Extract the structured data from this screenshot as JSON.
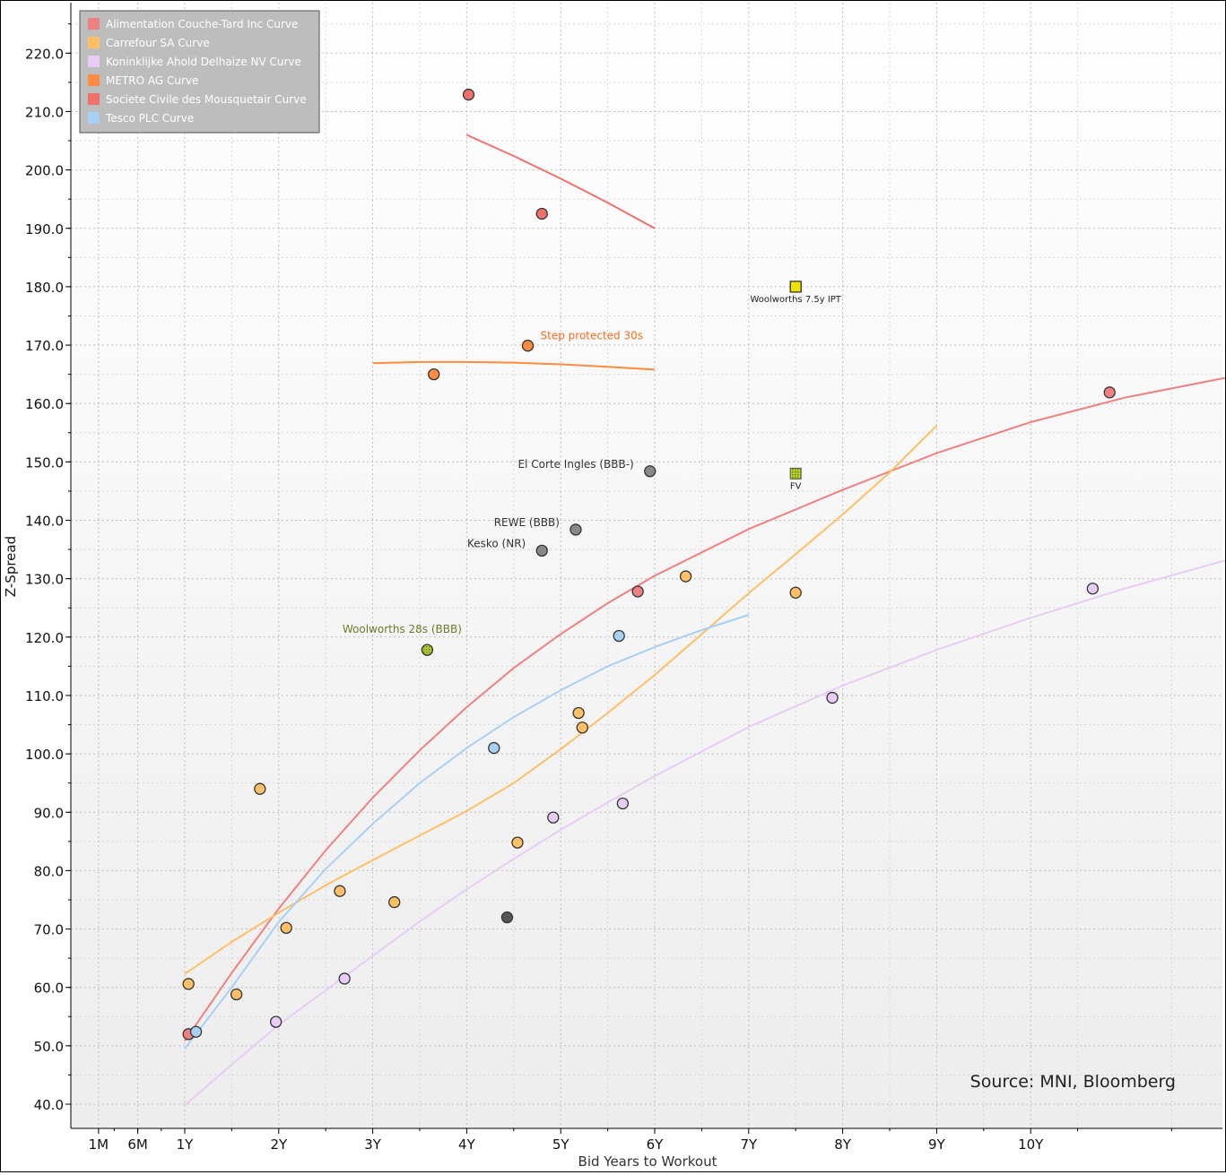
{
  "chart_data": {
    "type": "scatter",
    "xlabel": "Bid Years to Workout",
    "ylabel": "Z-Spread",
    "xlim": [
      0,
      12.2
    ],
    "ylim": [
      38,
      226
    ],
    "x_ticks": [
      {
        "label": "1M",
        "value": 0.083
      },
      {
        "label": "6M",
        "value": 0.5
      },
      {
        "label": "1Y",
        "value": 1
      },
      {
        "label": "2Y",
        "value": 2
      },
      {
        "label": "3Y",
        "value": 3
      },
      {
        "label": "4Y",
        "value": 4
      },
      {
        "label": "5Y",
        "value": 5
      },
      {
        "label": "6Y",
        "value": 6
      },
      {
        "label": "7Y",
        "value": 7
      },
      {
        "label": "8Y",
        "value": 8
      },
      {
        "label": "9Y",
        "value": 9
      },
      {
        "label": "10Y",
        "value": 10
      }
    ],
    "y_ticks": [
      "40.0",
      "50.0",
      "60.0",
      "70.0",
      "80.0",
      "90.0",
      "100.0",
      "110.0",
      "120.0",
      "130.0",
      "140.0",
      "150.0",
      "160.0",
      "170.0",
      "180.0",
      "190.0",
      "200.0",
      "210.0",
      "220.0"
    ],
    "grid": true,
    "legend_position": "top-left",
    "source": "Source: MNI, Bloomberg",
    "series": [
      {
        "name": "Alimentation Couche-Tard Inc Curve",
        "color": "#f08080",
        "points": [
          [
            1.04,
            52
          ],
          [
            5.82,
            127.8
          ],
          [
            10.84,
            161.9
          ]
        ],
        "curve": [
          [
            1.0,
            50.8
          ],
          [
            1.5,
            62.5
          ],
          [
            2.0,
            73.5
          ],
          [
            2.5,
            83.5
          ],
          [
            3.0,
            92.5
          ],
          [
            3.5,
            100.6
          ],
          [
            4.0,
            108.0
          ],
          [
            4.5,
            114.7
          ],
          [
            5.0,
            120.5
          ],
          [
            5.5,
            125.8
          ],
          [
            6.0,
            130.5
          ],
          [
            7.0,
            138.5
          ],
          [
            8.0,
            145.2
          ],
          [
            9.0,
            151.5
          ],
          [
            10.0,
            156.8
          ],
          [
            11.0,
            161.0
          ],
          [
            12.2,
            164.8
          ]
        ]
      },
      {
        "name": "Carrefour SA Curve",
        "color": "#ffbf66",
        "points": [
          [
            1.04,
            60.6
          ],
          [
            1.8,
            94
          ],
          [
            1.55,
            58.8
          ],
          [
            2.08,
            70.2
          ],
          [
            2.65,
            76.5
          ],
          [
            3.23,
            74.6
          ],
          [
            4.54,
            84.8
          ],
          [
            5.19,
            107
          ],
          [
            5.23,
            104.5
          ],
          [
            6.33,
            130.4
          ],
          [
            7.5,
            127.6
          ]
        ],
        "curve": [
          [
            1.0,
            62.3
          ],
          [
            1.5,
            67.8
          ],
          [
            2.0,
            72.8
          ],
          [
            2.5,
            77.5
          ],
          [
            3.0,
            81.8
          ],
          [
            3.5,
            86.0
          ],
          [
            4.0,
            90.2
          ],
          [
            4.5,
            95.0
          ],
          [
            5.0,
            100.8
          ],
          [
            5.5,
            107.0
          ],
          [
            6.0,
            113.5
          ],
          [
            6.5,
            120.5
          ],
          [
            7.0,
            127.5
          ],
          [
            7.5,
            134.2
          ],
          [
            8.0,
            141.0
          ],
          [
            8.5,
            148.2
          ],
          [
            9.0,
            156.2
          ]
        ]
      },
      {
        "name": "Koninklijke Ahold Delhaize NV Curve",
        "color": "#e8ccf5",
        "points": [
          [
            1.97,
            54.1
          ],
          [
            2.7,
            61.5
          ],
          [
            4.92,
            89.1
          ],
          [
            5.66,
            91.5
          ],
          [
            7.89,
            109.6
          ],
          [
            10.66,
            128.3
          ]
        ],
        "curve": [
          [
            1.0,
            39.8
          ],
          [
            1.5,
            46.8
          ],
          [
            2.0,
            53.6
          ],
          [
            2.5,
            59.5
          ],
          [
            3.0,
            65.4
          ],
          [
            3.5,
            71.3
          ],
          [
            4.0,
            76.8
          ],
          [
            4.5,
            82.0
          ],
          [
            5.0,
            87.0
          ],
          [
            5.5,
            91.7
          ],
          [
            6.0,
            96.2
          ],
          [
            7.0,
            104.6
          ],
          [
            8.0,
            111.7
          ],
          [
            9.0,
            117.8
          ],
          [
            10.0,
            123.3
          ],
          [
            11.0,
            128.3
          ],
          [
            12.2,
            133.7
          ]
        ]
      },
      {
        "name": "METRO AG Curve",
        "color": "#ff8c42",
        "points": [
          [
            3.65,
            165
          ],
          [
            4.65,
            169.9
          ]
        ],
        "curve": [
          [
            3.0,
            166.9
          ],
          [
            3.5,
            167.1
          ],
          [
            4.0,
            167.1
          ],
          [
            4.5,
            167.0
          ],
          [
            5.0,
            166.7
          ],
          [
            5.5,
            166.3
          ],
          [
            6.0,
            165.8
          ]
        ]
      },
      {
        "name": "Societe Civile des Mousquetair Curve",
        "color": "#f0706a",
        "points": [
          [
            4.02,
            212.9
          ],
          [
            4.8,
            192.5
          ]
        ],
        "curve": [
          [
            4.0,
            206.0
          ],
          [
            4.5,
            202.4
          ],
          [
            5.0,
            198.5
          ],
          [
            5.5,
            194.4
          ],
          [
            6.0,
            190.0
          ]
        ]
      },
      {
        "name": "Tesco PLC Curve",
        "color": "#a8d0f5",
        "points": [
          [
            1.12,
            52.4
          ],
          [
            4.29,
            101
          ],
          [
            5.62,
            120.2
          ]
        ],
        "curve": [
          [
            1.0,
            49.5
          ],
          [
            1.5,
            60.0
          ],
          [
            2.0,
            71.2
          ],
          [
            2.5,
            80.3
          ],
          [
            3.0,
            88.0
          ],
          [
            3.5,
            95.0
          ],
          [
            4.0,
            101.0
          ],
          [
            4.5,
            106.3
          ],
          [
            5.0,
            110.9
          ],
          [
            5.5,
            115.0
          ],
          [
            6.0,
            118.3
          ],
          [
            6.5,
            121.2
          ],
          [
            7.0,
            123.8
          ]
        ]
      }
    ],
    "other_points": [
      {
        "x": 4.43,
        "y": 72,
        "color": "#555555",
        "label": ""
      },
      {
        "x": 4.8,
        "y": 134.8,
        "color": "#888888",
        "label": "Kesko (NR)"
      },
      {
        "x": 5.16,
        "y": 138.4,
        "color": "#888888",
        "label": "REWE (BBB)"
      },
      {
        "x": 5.95,
        "y": 148.4,
        "color": "#888888",
        "label": "El Corte Ingles (BBB-)"
      },
      {
        "x": 3.58,
        "y": 117.8,
        "color": "#9ab51e",
        "label": "Woolworths 28s (BBB)",
        "label_color": "#6b7b2a"
      }
    ],
    "markers": [
      {
        "x": 7.5,
        "y": 180,
        "color": "#f0e000",
        "label": "Woolworths 7.5y IPT"
      },
      {
        "x": 7.5,
        "y": 148,
        "color": "#8a9a1a",
        "label": "FV"
      }
    ],
    "annotations": [
      {
        "text": "Step protected 30s",
        "color": "#f07020"
      }
    ]
  }
}
